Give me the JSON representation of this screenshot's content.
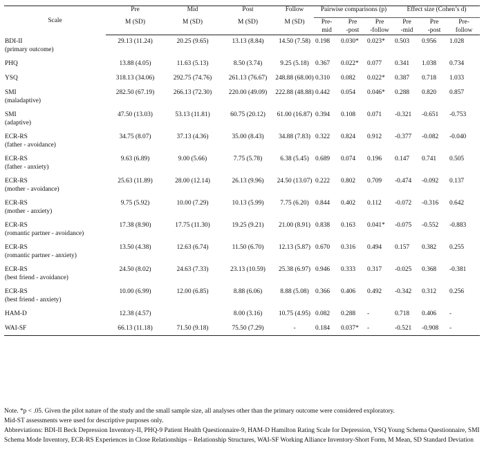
{
  "table": {
    "headers": {
      "scale": "Scale",
      "pre": "Pre",
      "mid": "Mid",
      "post": "Post",
      "follow": "Follow",
      "msd": "M (SD)",
      "pairwise": "Pairwise comparisons (p)",
      "effect": "Effect size (Cohen’s d)",
      "sub_pre_mid": [
        "Pre-",
        "mid"
      ],
      "sub_pre_post": [
        "Pre",
        "-post"
      ],
      "sub_pre_follow": [
        "Pre",
        "-follow"
      ],
      "sub_e_pre_mid": [
        "Pre",
        "-mid"
      ],
      "sub_e_pre_post": [
        "Pre",
        "-post"
      ],
      "sub_e_pre_follow": [
        "Pre-",
        "follow"
      ]
    },
    "rows": [
      {
        "scale": "BDI-II",
        "sub": "(primary outcome)",
        "pre": "29.13 (11.24)",
        "mid": "20.25 (9.65)",
        "post": "13.13 (8.84)",
        "follow": "14.50 (7.58)",
        "p_pm": "0.198",
        "p_pp": "0.030*",
        "p_pf": "0.023*",
        "d_pm": "0.503",
        "d_pp": "0.956",
        "d_pf": "1.028"
      },
      {
        "scale": "PHQ",
        "sub": "",
        "pre": "13.88 (4.05)",
        "mid": "11.63 (5.13)",
        "post": "8.50 (3.74)",
        "follow": "9.25 (5.18)",
        "p_pm": "0.367",
        "p_pp": "0.022*",
        "p_pf": "0.077",
        "d_pm": "0.341",
        "d_pp": "1.038",
        "d_pf": "0.734"
      },
      {
        "scale": "YSQ",
        "sub": "",
        "pre": "318.13 (34.06)",
        "mid": "292.75 (74.76)",
        "post": "261.13 (76.67)",
        "follow": "248.88 (68.00)",
        "p_pm": "0.310",
        "p_pp": "0.082",
        "p_pf": "0.022*",
        "d_pm": "0.387",
        "d_pp": "0.718",
        "d_pf": "1.033"
      },
      {
        "scale": "SMI",
        "sub": "(maladaptive)",
        "pre": "282.50 (67.19)",
        "mid": "266.13 (72.30)",
        "post": "220.00 (49.09)",
        "follow": "222.88 (48.88)",
        "p_pm": "0.442",
        "p_pp": "0.054",
        "p_pf": "0.046*",
        "d_pm": "0.288",
        "d_pp": "0.820",
        "d_pf": "0.857"
      },
      {
        "scale": "SMI",
        "sub": "(adaptive)",
        "pre": "47.50 (13.03)",
        "mid": "53.13 (11.81)",
        "post": "60.75 (20.12)",
        "follow": "61.00 (16.87)",
        "p_pm": "0.394",
        "p_pp": "0.108",
        "p_pf": "0.071",
        "d_pm": "-0.321",
        "d_pp": "-0.651",
        "d_pf": "-0.753"
      },
      {
        "scale": "ECR-RS",
        "sub": "(father - avoidance)",
        "pre": "34.75 (8.07)",
        "mid": "37.13 (4.36)",
        "post": "35.00 (8.43)",
        "follow": "34.88 (7.83)",
        "p_pm": "0.322",
        "p_pp": "0.824",
        "p_pf": "0.912",
        "d_pm": "-0.377",
        "d_pp": "-0.082",
        "d_pf": "-0.040"
      },
      {
        "scale": "ECR-RS",
        "sub": "(father - anxiety)",
        "pre": "9.63 (6.89)",
        "mid": "9.00 (5.66)",
        "post": "7.75 (5.78)",
        "follow": "6.38 (5.45)",
        "p_pm": "0.689",
        "p_pp": "0.074",
        "p_pf": "0.196",
        "d_pm": "0.147",
        "d_pp": "0.741",
        "d_pf": "0.505"
      },
      {
        "scale": "ECR-RS",
        "sub": "(mother - avoidance)",
        "pre": "25.63 (11.89)",
        "mid": "28.00 (12.14)",
        "post": "26.13 (9.96)",
        "follow": "24.50 (13.07)",
        "p_pm": "0.222",
        "p_pp": "0.802",
        "p_pf": "0.709",
        "d_pm": "-0.474",
        "d_pp": "-0.092",
        "d_pf": "0.137"
      },
      {
        "scale": "ECR-RS",
        "sub": "(mother - anxiety)",
        "pre": "9.75 (5.92)",
        "mid": "10.00 (7.29)",
        "post": "10.13 (5.99)",
        "follow": "7.75 (6.20)",
        "p_pm": "0.844",
        "p_pp": "0.402",
        "p_pf": "0.112",
        "d_pm": "-0.072",
        "d_pp": "-0.316",
        "d_pf": "0.642"
      },
      {
        "scale": "ECR-RS",
        "sub": "(romantic partner - avoidance)",
        "pre": "17.38 (8.90)",
        "mid": "17.75 (11.30)",
        "post": "19.25 (9.21)",
        "follow": "21.00 (8.91)",
        "p_pm": "0.838",
        "p_pp": "0.163",
        "p_pf": "0.041*",
        "d_pm": "-0.075",
        "d_pp": "-0.552",
        "d_pf": "-0.883"
      },
      {
        "scale": "ECR-RS",
        "sub": "(romantic partner - anxiety)",
        "pre": "13.50 (4.38)",
        "mid": "12.63 (6.74)",
        "post": "11.50 (6.70)",
        "follow": "12.13 (5.87)",
        "p_pm": "0.670",
        "p_pp": "0.316",
        "p_pf": "0.494",
        "d_pm": "0.157",
        "d_pp": "0.382",
        "d_pf": "0.255"
      },
      {
        "scale": "ECR-RS",
        "sub": "(best friend - avoidance)",
        "pre": "24.50 (8.02)",
        "mid": "24.63 (7.33)",
        "post": "23.13 (10.59)",
        "follow": "25.38 (6.97)",
        "p_pm": "0.946",
        "p_pp": "0.333",
        "p_pf": "0.317",
        "d_pm": "-0.025",
        "d_pp": "0.368",
        "d_pf": "-0.381"
      },
      {
        "scale": "ECR-RS",
        "sub": "(best friend - anxiety)",
        "pre": "10.00 (6.99)",
        "mid": "12.00 (6.85)",
        "post": "8.88 (6.06)",
        "follow": "8.88 (5.08)",
        "p_pm": "0.366",
        "p_pp": "0.406",
        "p_pf": "0.492",
        "d_pm": "-0.342",
        "d_pp": "0.312",
        "d_pf": "0.256"
      },
      {
        "scale": "HAM-D",
        "sub": "",
        "pre": "12.38 (4.57)",
        "mid": "",
        "post": "8.00 (3.16)",
        "follow": "10.75 (4.95)",
        "p_pm": "0.082",
        "p_pp": "0.288",
        "p_pf": "-",
        "d_pm": "0.718",
        "d_pp": "0.406",
        "d_pf": "-"
      },
      {
        "scale": "WAI-SF",
        "sub": "",
        "pre": "66.13 (11.18)",
        "mid": "71.50 (9.18)",
        "post": "75.50 (7.29)",
        "follow": "-",
        "p_pm": "0.184",
        "p_pp": "0.037*",
        "p_pf": "-",
        "d_pm": "-0.521",
        "d_pp": "-0.908",
        "d_pf": "-"
      }
    ]
  },
  "notes": {
    "line1": "Note. *p < .05. Given the pilot nature of the study and the small sample size, all analyses other than the primary outcome were considered exploratory.",
    "line2": "Mid-ST assessments were used for descriptive purposes only.",
    "line3": "Abbreviations: BDI-II Beck Depression Inventory-II, PHQ-9 Patient Health Questionnaire-9, HAM-D Hamilton Rating Scale for Depression, YSQ Young Schema Questionnaire, SMI Schema Mode Inventory, ECR-RS Experiences in Close Relationships – Relationship Structures, WAI-SF Working Alliance Inventory-Short Form, M Mean, SD Standard Deviation"
  }
}
